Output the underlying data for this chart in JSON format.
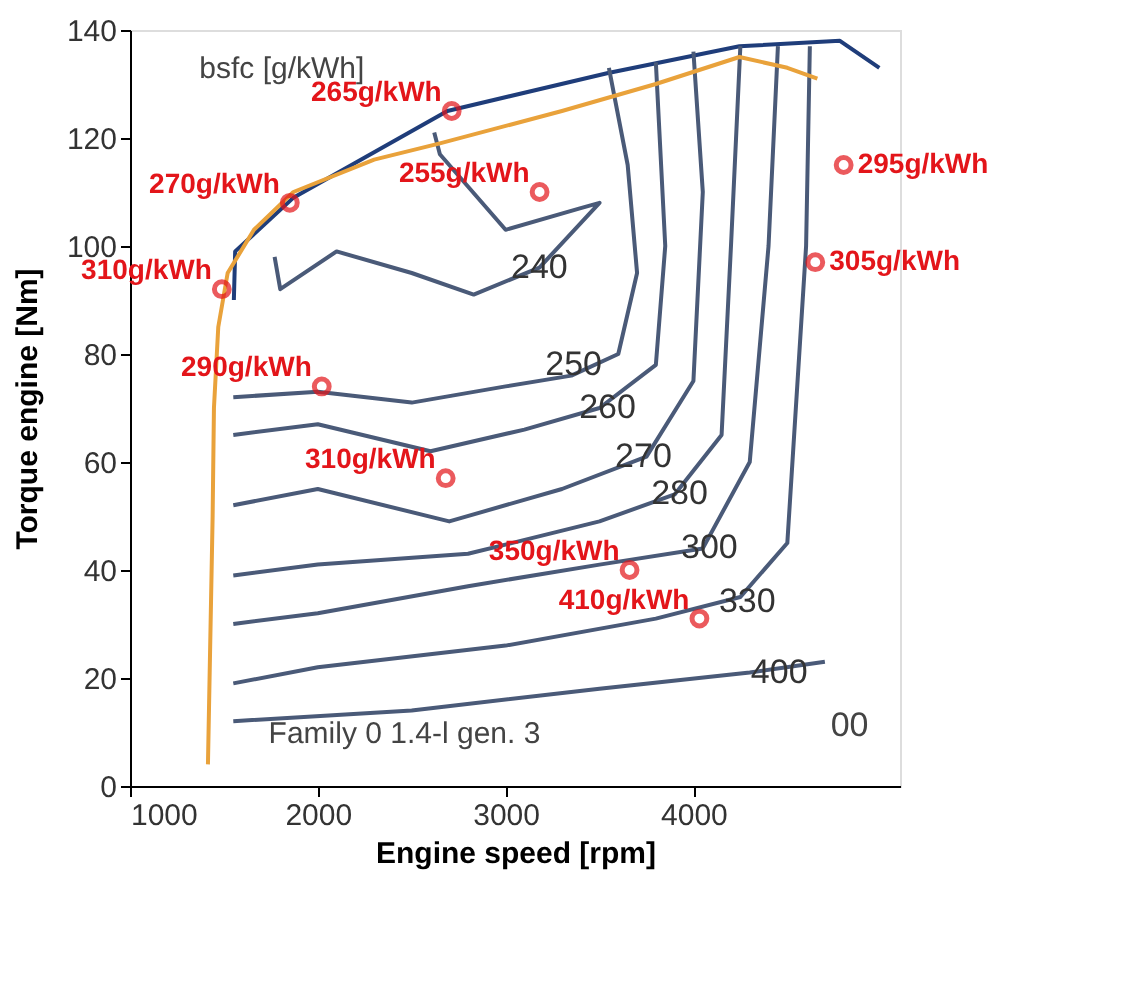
{
  "chart_data": {
    "type": "line",
    "xlabel": "Engine speed [rpm]",
    "ylabel": "Torque engine [Nm]",
    "xlim": [
      1000,
      5100
    ],
    "xticks": [
      1000,
      2000,
      3000,
      4000
    ],
    "ylim": [
      0,
      140
    ],
    "yticks": [
      0,
      20,
      40,
      60,
      80,
      100,
      120,
      140
    ],
    "grid": false,
    "legend": false,
    "series": [
      {
        "type": "line",
        "color": "#1f3d7a",
        "x": [
          1553,
          1560,
          1872,
          2690,
          3540,
          4245,
          4780,
          4990
        ],
        "values": [
          90,
          99,
          109,
          125,
          132,
          137,
          138,
          133
        ]
      },
      {
        "type": "line",
        "color": "#4a5a78",
        "x": [
          1770,
          1800,
          2100,
          2500,
          2830,
          3180,
          3500,
          3400,
          3000,
          2650,
          2620
        ],
        "values": [
          98,
          92,
          99,
          95,
          91,
          96,
          108,
          107,
          103,
          117,
          121
        ]
      },
      {
        "type": "line",
        "color": "#4a5a78",
        "x": [
          1550,
          2000,
          2500,
          3000,
          3350,
          3600,
          3700,
          3650,
          3550
        ],
        "values": [
          72,
          73,
          71,
          74,
          76,
          80,
          95,
          115,
          133
        ]
      },
      {
        "type": "line",
        "color": "#4a5a78",
        "x": [
          1550,
          2000,
          2600,
          3100,
          3500,
          3800,
          3850,
          3800
        ],
        "values": [
          65,
          67,
          62,
          66,
          70,
          78,
          100,
          134
        ]
      },
      {
        "type": "line",
        "color": "#4a5a78",
        "x": [
          1550,
          2000,
          2700,
          3300,
          3750,
          4000,
          4050,
          4000
        ],
        "values": [
          52,
          55,
          49,
          55,
          61,
          75,
          110,
          136
        ]
      },
      {
        "type": "line",
        "color": "#4a5a78",
        "x": [
          1550,
          2000,
          2800,
          3500,
          3900,
          4150,
          4200,
          4250
        ],
        "values": [
          39,
          41,
          43,
          49,
          54,
          65,
          100,
          137
        ]
      },
      {
        "type": "line",
        "color": "#4a5a78",
        "x": [
          1550,
          2000,
          2800,
          3500,
          4050,
          4300,
          4400,
          4450
        ],
        "values": [
          30,
          32,
          37,
          41,
          44,
          60,
          100,
          137
        ]
      },
      {
        "type": "line",
        "color": "#4a5a78",
        "x": [
          1550,
          2000,
          3000,
          3800,
          4250,
          4500,
          4600,
          4620
        ],
        "values": [
          19,
          22,
          26,
          31,
          35,
          45,
          100,
          137
        ]
      },
      {
        "type": "line",
        "color": "#4a5a78",
        "x": [
          1550,
          2500,
          3500,
          4300,
          4700
        ],
        "values": [
          12,
          14,
          18,
          21,
          23
        ]
      },
      {
        "color": "#e9a23b",
        "x": [
          1415,
          1440,
          1447,
          1470,
          1520,
          1660,
          1870,
          2300,
          2650,
          3300,
          3800,
          4245,
          4500,
          4660
        ],
        "values": [
          4,
          50,
          70,
          85,
          95,
          103,
          110,
          116,
          119,
          125,
          130,
          135,
          133,
          131
        ]
      },
      {
        "type": "scatter",
        "marker": "circle",
        "color": "#e3151a",
        "x": [
          4800,
          2713,
          1851,
          3181,
          1489,
          4649,
          2021,
          2681,
          3660,
          4032
        ],
        "values": [
          115,
          125,
          108,
          110,
          92,
          97,
          74,
          57,
          40,
          31
        ]
      }
    ],
    "annotations": [
      "bsfc [g/kWh]",
      "Family 0 1.4-l gen. 3",
      {
        "text": "295g/kWh",
        "x": 4800,
        "y": 115
      },
      {
        "text": "265g/kWh",
        "x": 2713,
        "y": 125
      },
      {
        "text": "270g/kWh",
        "x": 1851,
        "y": 108
      },
      {
        "text": "255g/kWh",
        "x": 3181,
        "y": 110
      },
      {
        "text": "310g/kWh",
        "x": 1489,
        "y": 92
      },
      {
        "text": "305g/kWh",
        "x": 4649,
        "y": 97
      },
      {
        "text": "290g/kWh",
        "x": 2021,
        "y": 74
      },
      {
        "text": "310g/kWh",
        "x": 2681,
        "y": 57
      },
      {
        "text": "350g/kWh",
        "x": 3660,
        "y": 40
      },
      {
        "text": "410g/kWh",
        "x": 4032,
        "y": 31
      },
      {
        "text": "240",
        "x": 3180,
        "y": 96
      },
      {
        "text": "250",
        "x": 3362,
        "y": 78
      },
      {
        "text": "260",
        "x": 3543,
        "y": 70
      },
      {
        "text": "270",
        "x": 3734,
        "y": 61
      },
      {
        "text": "280",
        "x": 3926,
        "y": 54
      },
      {
        "text": "300",
        "x": 4085,
        "y": 44
      },
      {
        "text": "330",
        "x": 4287,
        "y": 34
      },
      {
        "text": "400",
        "x": 4457,
        "y": 21
      },
      "00"
    ]
  }
}
